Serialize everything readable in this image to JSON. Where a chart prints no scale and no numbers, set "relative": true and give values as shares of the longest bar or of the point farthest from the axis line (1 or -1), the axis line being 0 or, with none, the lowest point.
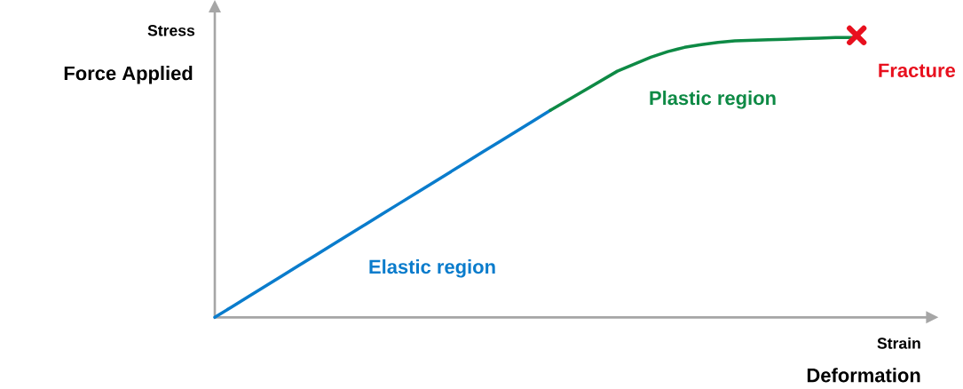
{
  "chart_data": {
    "type": "line",
    "relative": true,
    "ylabel": "Stress",
    "xlabel": "Strain",
    "annotations": [
      "Force Applied",
      "Deformation",
      "Fracture"
    ],
    "categories": [
      null,
      null,
      null,
      null,
      null,
      null,
      null,
      null,
      null,
      null,
      null,
      null,
      null,
      null,
      null,
      null,
      null,
      null,
      null,
      null,
      null,
      null,
      null,
      null,
      null,
      null,
      null,
      null,
      null,
      null,
      null,
      null,
      null,
      null,
      null,
      null,
      null,
      null,
      null,
      null,
      null,
      null,
      null
    ],
    "series": [
      {
        "name": "Elastic region",
        "color": "#0a7ccc",
        "values": [
          0,
          0.037,
          0.074,
          0.111,
          0.148,
          0.185,
          0.222,
          0.259,
          0.296,
          0.333,
          0.37,
          0.407,
          0.444,
          0.481,
          0.518,
          0.555,
          0.592,
          0.629,
          0.666,
          0.703,
          0.74,
          null,
          null,
          null,
          null,
          null,
          null,
          null,
          null,
          null,
          null,
          null,
          null,
          null,
          null,
          null,
          null,
          null,
          null,
          null,
          null,
          null,
          null
        ]
      },
      {
        "name": "Plastic region",
        "color": "#0e8a45",
        "values": [
          null,
          null,
          null,
          null,
          null,
          null,
          null,
          null,
          null,
          null,
          null,
          null,
          null,
          null,
          null,
          null,
          null,
          null,
          null,
          null,
          0.74,
          0.775,
          0.81,
          0.845,
          0.88,
          0.905,
          0.93,
          0.95,
          0.965,
          0.975,
          0.983,
          0.988,
          0.99,
          0.992,
          0.994,
          0.996,
          0.998,
          1.0,
          1.0,
          null,
          null,
          null,
          null
        ]
      }
    ]
  }
}
